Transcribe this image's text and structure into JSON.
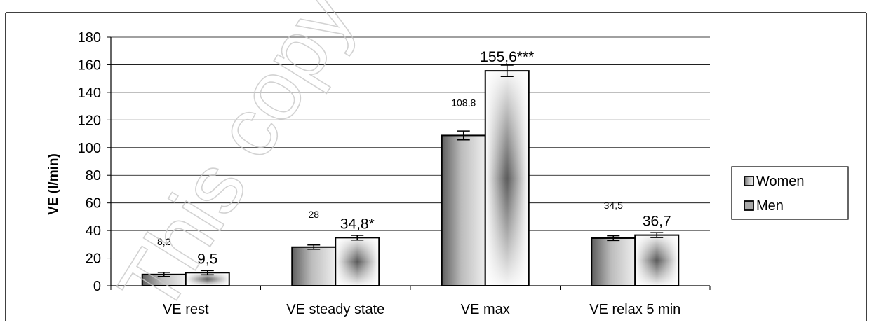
{
  "chart_data": {
    "type": "bar",
    "title": "",
    "xlabel": "",
    "ylabel": "VE (l/min)",
    "ylim": [
      0,
      180
    ],
    "yticks": [
      0,
      20,
      40,
      60,
      80,
      100,
      120,
      140,
      160,
      180
    ],
    "grid": true,
    "legend_position": "right",
    "categories": [
      "VE rest",
      "VE steady state",
      "VE max",
      "VE relax 5 min"
    ],
    "series": [
      {
        "name": "Women",
        "values": [
          8.2,
          28,
          108.8,
          34.5
        ],
        "labels": [
          "8,2",
          "28",
          "108,8",
          "34,5"
        ],
        "color": "#8a8a8a"
      },
      {
        "name": "Men",
        "values": [
          9.5,
          34.8,
          155.6,
          36.7
        ],
        "labels": [
          "9,5",
          "34,8*",
          "155,6***",
          "36,7"
        ],
        "color": "#bdbdbd"
      }
    ],
    "watermark": "This copy is for p"
  }
}
